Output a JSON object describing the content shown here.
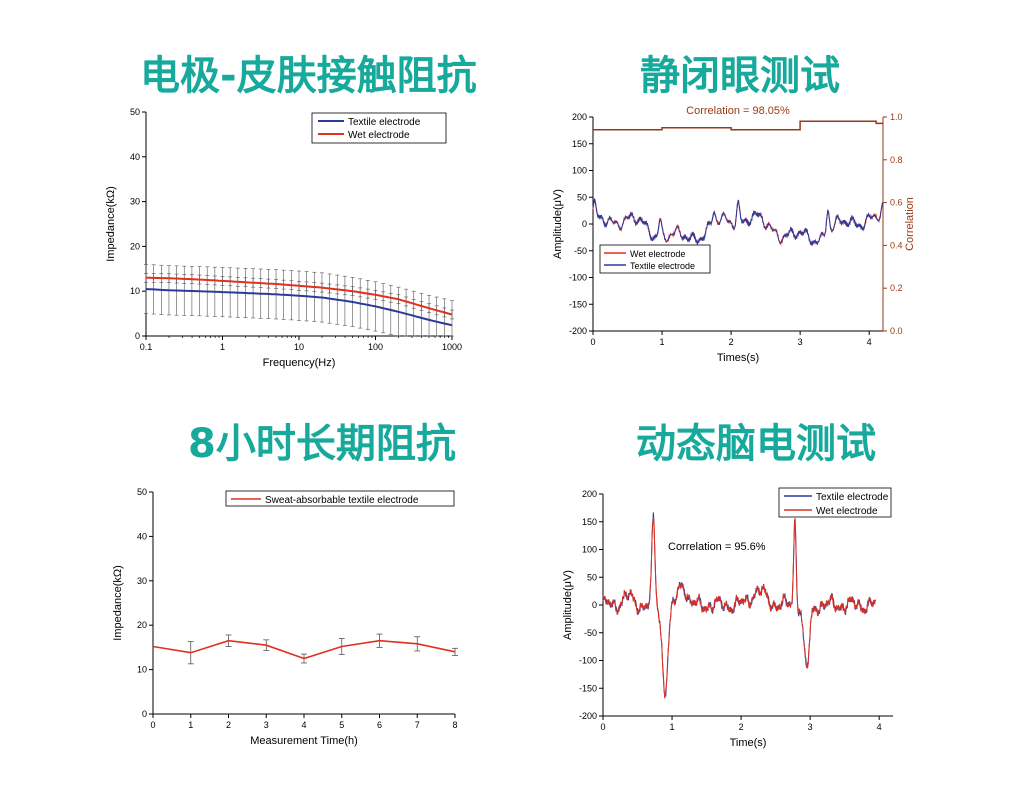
{
  "titles": {
    "p1": "电极-皮肤接触阻抗",
    "p2": "静闭眼测试",
    "p3": "8小时长期阻抗",
    "p4": "动态脑电测试"
  },
  "colors": {
    "title": "#17a99b",
    "textile": "#2a3a9a",
    "wet": "#e0301e",
    "correlation": "#9a3a14",
    "errorbar": "#555555"
  },
  "chart_data": [
    {
      "type": "line",
      "scale_x": "log",
      "xlabel": "Frequency(Hz)",
      "ylabel": "Impedance(kΩ)",
      "xlim": [
        0.1,
        1000
      ],
      "ylim": [
        0,
        50
      ],
      "xticks": [
        0.1,
        1,
        10,
        100,
        1000
      ],
      "xtick_labels": [
        "0.1",
        "1",
        "10",
        "100",
        "1000"
      ],
      "yticks": [
        0,
        10,
        20,
        30,
        40,
        50
      ],
      "legend": "top-right",
      "x": [
        0.1,
        0.2,
        0.5,
        1,
        2,
        5,
        10,
        20,
        50,
        100,
        200,
        500,
        1000
      ],
      "series": [
        {
          "name": "Textile electrode",
          "color": "textile",
          "values": [
            10.5,
            10.2,
            10.0,
            9.8,
            9.6,
            9.3,
            9.0,
            8.6,
            7.6,
            6.6,
            5.4,
            3.6,
            2.4
          ],
          "error": 5.5
        },
        {
          "name": "Wet  electrode",
          "color": "wet",
          "values": [
            13.0,
            12.9,
            12.6,
            12.3,
            12.0,
            11.6,
            11.2,
            10.8,
            10.0,
            9.2,
            8.2,
            6.2,
            4.8
          ],
          "error": 1.0
        }
      ]
    },
    {
      "type": "line",
      "xlabel": "Times(s)",
      "ylabel": "Amplitude(μV)",
      "ylabel_right": "Correlation",
      "xlim": [
        0,
        4.2
      ],
      "ylim": [
        -200,
        200
      ],
      "ylim_right": [
        0,
        1.0
      ],
      "xticks": [
        0,
        1,
        2,
        3,
        4
      ],
      "yticks": [
        -200,
        -150,
        -100,
        -50,
        0,
        50,
        100,
        150,
        200
      ],
      "yticks_right": [
        0.0,
        0.2,
        0.4,
        0.6,
        0.8,
        1.0
      ],
      "annotation": "Correlation = 98.05%",
      "legend": "bottom-left",
      "events": [
        {
          "t": 0.02,
          "a": 25
        },
        {
          "t": 0.97,
          "a": 32
        },
        {
          "t": 1.75,
          "a": 20
        },
        {
          "t": 2.1,
          "a": 35
        },
        {
          "t": 3.4,
          "a": 48
        },
        {
          "t": 4.2,
          "a": 18
        }
      ],
      "series": [
        {
          "name": "Wet electrode",
          "color": "wet"
        },
        {
          "name": "Textile electrode",
          "color": "textile"
        },
        {
          "name": "Correlation",
          "color": "correlation",
          "x": [
            0,
            1,
            1,
            2,
            2,
            3,
            3,
            4.1,
            4.1,
            4.2
          ],
          "values": [
            0.94,
            0.94,
            0.95,
            0.95,
            0.94,
            0.94,
            0.98,
            0.98,
            0.97,
            0.97
          ]
        }
      ]
    },
    {
      "type": "line",
      "xlabel": "Measurement Time(h)",
      "ylabel": "Impedance(kΩ)",
      "xlim": [
        0,
        8
      ],
      "ylim": [
        0,
        50
      ],
      "xticks": [
        0,
        1,
        2,
        3,
        4,
        5,
        6,
        7,
        8
      ],
      "yticks": [
        0,
        10,
        20,
        30,
        40,
        50
      ],
      "legend": "top-right",
      "x": [
        0,
        1,
        2,
        3,
        4,
        5,
        6,
        7,
        8
      ],
      "series": [
        {
          "name": "Sweat-absorbable textile electrode",
          "color": "wet",
          "values": [
            15.2,
            13.8,
            16.5,
            15.5,
            12.5,
            15.2,
            16.5,
            15.8,
            14.0
          ],
          "error": [
            0,
            2.5,
            1.3,
            1.2,
            1.0,
            1.8,
            1.5,
            1.6,
            0.8
          ]
        }
      ]
    },
    {
      "type": "line",
      "xlabel": "Time(s)",
      "ylabel": "Amplitude(μV)",
      "xlim": [
        0,
        4.2
      ],
      "ylim": [
        -200,
        200
      ],
      "xticks": [
        0,
        1,
        2,
        3,
        4
      ],
      "yticks": [
        -200,
        -150,
        -100,
        -50,
        0,
        50,
        100,
        150,
        200
      ],
      "annotation": "Correlation = 95.6%",
      "legend": "top-right",
      "series": [
        {
          "name": "Textile electrode",
          "color": "textile"
        },
        {
          "name": "Wet electrode",
          "color": "wet"
        }
      ]
    }
  ]
}
